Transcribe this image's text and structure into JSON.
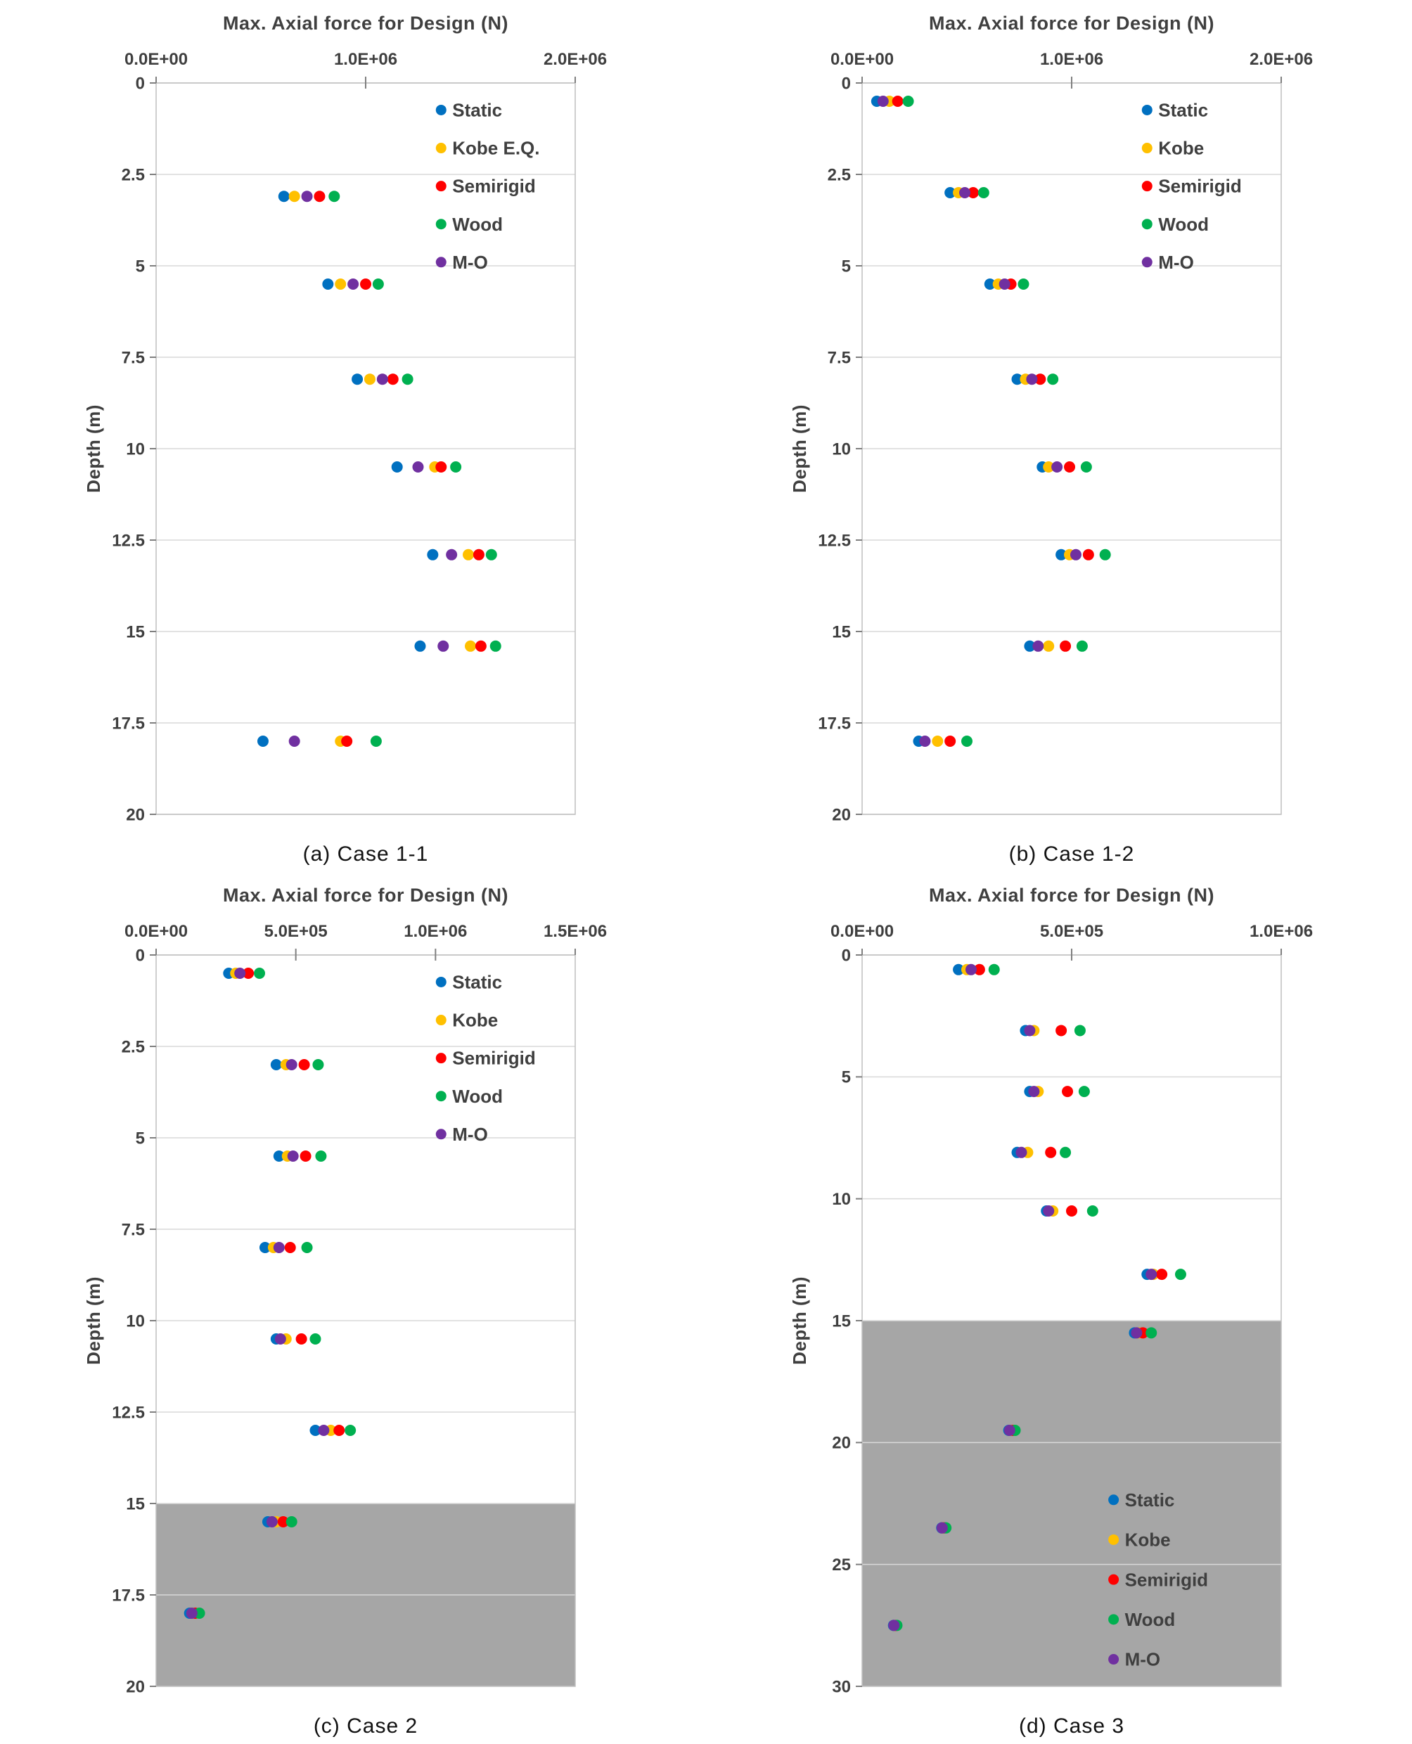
{
  "figure": {
    "background": "#FFFFFF",
    "grid_color": "#D9D9D9",
    "border_color": "#BFBFBF",
    "tick_color": "#7F7F7F",
    "text_color": "#3F3F3F",
    "shading_color": "#A6A6A6"
  },
  "chart_data": [
    {
      "type": "scatter",
      "title": "Max. Axial force for Design (N)",
      "caption": "(a)  Case 1-1",
      "xlabel": "",
      "ylabel": "Depth (m)",
      "xlim": [
        0,
        2000000
      ],
      "xticks": [
        0,
        1000000,
        2000000
      ],
      "xtick_labels": [
        "0.0E+00",
        "1.0E+06",
        "2.0E+06"
      ],
      "ylim": [
        0,
        20
      ],
      "yticks": [
        0,
        2.5,
        5,
        7.5,
        10,
        12.5,
        15,
        17.5,
        20
      ],
      "ytick_labels": [
        "0",
        "2.5",
        "5",
        "7.5",
        "10",
        "12.5",
        "15",
        "17.5",
        "20"
      ],
      "grid": "horizontal",
      "legend_position": {
        "x": 0.68,
        "y": 0.037,
        "dy": 0.052
      },
      "shaded_region": null,
      "series": [
        {
          "name": "Static",
          "color": "#0070C0",
          "points": [
            [
              610000,
              3.1
            ],
            [
              820000,
              5.5
            ],
            [
              960000,
              8.1
            ],
            [
              1150000,
              10.5
            ],
            [
              1320000,
              12.9
            ],
            [
              1260000,
              15.4
            ],
            [
              510000,
              18.0
            ]
          ]
        },
        {
          "name": "Kobe E.Q.",
          "color": "#FFC000",
          "points": [
            [
              660000,
              3.1
            ],
            [
              880000,
              5.5
            ],
            [
              1020000,
              8.1
            ],
            [
              1330000,
              10.5
            ],
            [
              1490000,
              12.9
            ],
            [
              1500000,
              15.4
            ],
            [
              880000,
              18.0
            ]
          ]
        },
        {
          "name": "Semirigid",
          "color": "#FF0000",
          "points": [
            [
              780000,
              3.1
            ],
            [
              1000000,
              5.5
            ],
            [
              1130000,
              8.1
            ],
            [
              1360000,
              10.5
            ],
            [
              1540000,
              12.9
            ],
            [
              1550000,
              15.4
            ],
            [
              910000,
              18.0
            ]
          ]
        },
        {
          "name": "Wood",
          "color": "#00B050",
          "points": [
            [
              850000,
              3.1
            ],
            [
              1060000,
              5.5
            ],
            [
              1200000,
              8.1
            ],
            [
              1430000,
              10.5
            ],
            [
              1600000,
              12.9
            ],
            [
              1620000,
              15.4
            ],
            [
              1050000,
              18.0
            ]
          ]
        },
        {
          "name": "M-O",
          "color": "#7030A0",
          "points": [
            [
              720000,
              3.1
            ],
            [
              940000,
              5.5
            ],
            [
              1080000,
              8.1
            ],
            [
              1250000,
              10.5
            ],
            [
              1410000,
              12.9
            ],
            [
              1370000,
              15.4
            ],
            [
              660000,
              18.0
            ]
          ]
        }
      ]
    },
    {
      "type": "scatter",
      "title": "Max. Axial force for Design (N)",
      "caption": "(b)  Case 1-2",
      "xlabel": "",
      "ylabel": "Depth (m)",
      "xlim": [
        0,
        2000000
      ],
      "xticks": [
        0,
        1000000,
        2000000
      ],
      "xtick_labels": [
        "0.0E+00",
        "1.0E+06",
        "2.0E+06"
      ],
      "ylim": [
        0,
        20
      ],
      "yticks": [
        0,
        2.5,
        5,
        7.5,
        10,
        12.5,
        15,
        17.5,
        20
      ],
      "ytick_labels": [
        "0",
        "2.5",
        "5",
        "7.5",
        "10",
        "12.5",
        "15",
        "17.5",
        "20"
      ],
      "grid": "horizontal",
      "legend_position": {
        "x": 0.68,
        "y": 0.037,
        "dy": 0.052
      },
      "shaded_region": null,
      "series": [
        {
          "name": "Static",
          "color": "#0070C0",
          "points": [
            [
              70000,
              0.5
            ],
            [
              420000,
              3.0
            ],
            [
              610000,
              5.5
            ],
            [
              740000,
              8.1
            ],
            [
              860000,
              10.5
            ],
            [
              950000,
              12.9
            ],
            [
              800000,
              15.4
            ],
            [
              270000,
              18.0
            ]
          ]
        },
        {
          "name": "Kobe",
          "color": "#FFC000",
          "points": [
            [
              130000,
              0.5
            ],
            [
              460000,
              3.0
            ],
            [
              650000,
              5.5
            ],
            [
              780000,
              8.1
            ],
            [
              890000,
              10.5
            ],
            [
              990000,
              12.9
            ],
            [
              890000,
              15.4
            ],
            [
              360000,
              18.0
            ]
          ]
        },
        {
          "name": "Semirigid",
          "color": "#FF0000",
          "points": [
            [
              170000,
              0.5
            ],
            [
              530000,
              3.0
            ],
            [
              710000,
              5.5
            ],
            [
              850000,
              8.1
            ],
            [
              990000,
              10.5
            ],
            [
              1080000,
              12.9
            ],
            [
              970000,
              15.4
            ],
            [
              420000,
              18.0
            ]
          ]
        },
        {
          "name": "Wood",
          "color": "#00B050",
          "points": [
            [
              220000,
              0.5
            ],
            [
              580000,
              3.0
            ],
            [
              770000,
              5.5
            ],
            [
              910000,
              8.1
            ],
            [
              1070000,
              10.5
            ],
            [
              1160000,
              12.9
            ],
            [
              1050000,
              15.4
            ],
            [
              500000,
              18.0
            ]
          ]
        },
        {
          "name": "M-O",
          "color": "#7030A0",
          "points": [
            [
              100000,
              0.5
            ],
            [
              490000,
              3.0
            ],
            [
              680000,
              5.5
            ],
            [
              810000,
              8.1
            ],
            [
              930000,
              10.5
            ],
            [
              1020000,
              12.9
            ],
            [
              840000,
              15.4
            ],
            [
              300000,
              18.0
            ]
          ]
        }
      ]
    },
    {
      "type": "scatter",
      "title": "Max. Axial force for Design (N)",
      "caption": "(c)  Case 2",
      "xlabel": "",
      "ylabel": "Depth (m)",
      "xlim": [
        0,
        1500000
      ],
      "xticks": [
        0,
        500000,
        1000000,
        1500000
      ],
      "xtick_labels": [
        "0.0E+00",
        "5.0E+05",
        "1.0E+06",
        "1.5E+06"
      ],
      "ylim": [
        0,
        20
      ],
      "yticks": [
        0,
        2.5,
        5,
        7.5,
        10,
        12.5,
        15,
        17.5,
        20
      ],
      "ytick_labels": [
        "0",
        "2.5",
        "5",
        "7.5",
        "10",
        "12.5",
        "15",
        "17.5",
        "20"
      ],
      "grid": "horizontal",
      "legend_position": {
        "x": 0.68,
        "y": 0.037,
        "dy": 0.052
      },
      "shaded_region": {
        "from_depth": 15,
        "to_depth": 20,
        "color": "#A6A6A6"
      },
      "series": [
        {
          "name": "Static",
          "color": "#0070C0",
          "points": [
            [
              260000,
              0.5
            ],
            [
              430000,
              3.0
            ],
            [
              440000,
              5.5
            ],
            [
              390000,
              8.0
            ],
            [
              430000,
              10.5
            ],
            [
              570000,
              13.0
            ],
            [
              400000,
              15.5
            ],
            [
              120000,
              18.0
            ]
          ]
        },
        {
          "name": "Kobe",
          "color": "#FFC000",
          "points": [
            [
              285000,
              0.5
            ],
            [
              465000,
              3.0
            ],
            [
              470000,
              5.5
            ],
            [
              420000,
              8.0
            ],
            [
              465000,
              10.5
            ],
            [
              625000,
              13.0
            ],
            [
              430000,
              15.5
            ],
            [
              130000,
              18.0
            ]
          ]
        },
        {
          "name": "Semirigid",
          "color": "#FF0000",
          "points": [
            [
              330000,
              0.5
            ],
            [
              530000,
              3.0
            ],
            [
              535000,
              5.5
            ],
            [
              480000,
              8.0
            ],
            [
              520000,
              10.5
            ],
            [
              655000,
              13.0
            ],
            [
              455000,
              15.5
            ],
            [
              140000,
              18.0
            ]
          ]
        },
        {
          "name": "Wood",
          "color": "#00B050",
          "points": [
            [
              370000,
              0.5
            ],
            [
              580000,
              3.0
            ],
            [
              590000,
              5.5
            ],
            [
              540000,
              8.0
            ],
            [
              570000,
              10.5
            ],
            [
              695000,
              13.0
            ],
            [
              485000,
              15.5
            ],
            [
              155000,
              18.0
            ]
          ]
        },
        {
          "name": "M-O",
          "color": "#7030A0",
          "points": [
            [
              300000,
              0.5
            ],
            [
              485000,
              3.0
            ],
            [
              490000,
              5.5
            ],
            [
              440000,
              8.0
            ],
            [
              445000,
              10.5
            ],
            [
              600000,
              13.0
            ],
            [
              415000,
              15.5
            ],
            [
              128000,
              18.0
            ]
          ]
        }
      ]
    },
    {
      "type": "scatter",
      "title": "Max. Axial force for Design (N)",
      "caption": "(d)  Case 3",
      "xlabel": "",
      "ylabel": "Depth (m)",
      "xlim": [
        0,
        1000000
      ],
      "xticks": [
        0,
        500000,
        1000000
      ],
      "xtick_labels": [
        "0.0E+00",
        "5.0E+05",
        "1.0E+06"
      ],
      "ylim": [
        0,
        30
      ],
      "yticks": [
        0,
        5,
        10,
        15,
        20,
        25,
        30
      ],
      "ytick_labels": [
        "0",
        "5",
        "10",
        "15",
        "20",
        "25",
        "30"
      ],
      "grid": "horizontal",
      "legend_position": {
        "x": 0.6,
        "y": 0.745,
        "dy": 0.0545
      },
      "shaded_region": {
        "from_depth": 15,
        "to_depth": 30,
        "color": "#A6A6A6"
      },
      "series": [
        {
          "name": "Static",
          "color": "#0070C0",
          "points": [
            [
              230000,
              0.6
            ],
            [
              390000,
              3.1
            ],
            [
              400000,
              5.6
            ],
            [
              370000,
              8.1
            ],
            [
              440000,
              10.5
            ],
            [
              680000,
              13.1
            ],
            [
              650000,
              15.5
            ],
            [
              350000,
              19.5
            ],
            [
              190000,
              23.5
            ],
            [
              75000,
              27.5
            ]
          ]
        },
        {
          "name": "Kobe",
          "color": "#FFC000",
          "points": [
            [
              250000,
              0.6
            ],
            [
              410000,
              3.1
            ],
            [
              420000,
              5.6
            ],
            [
              395000,
              8.1
            ],
            [
              455000,
              10.5
            ],
            [
              695000,
              13.1
            ],
            [
              660000,
              15.5
            ],
            [
              355000,
              19.5
            ],
            [
              193000,
              23.5
            ],
            [
              78000,
              27.5
            ]
          ]
        },
        {
          "name": "Semirigid",
          "color": "#FF0000",
          "points": [
            [
              280000,
              0.6
            ],
            [
              475000,
              3.1
            ],
            [
              490000,
              5.6
            ],
            [
              450000,
              8.1
            ],
            [
              500000,
              10.5
            ],
            [
              715000,
              13.1
            ],
            [
              670000,
              15.5
            ],
            [
              360000,
              19.5
            ],
            [
              196000,
              23.5
            ],
            [
              80000,
              27.5
            ]
          ]
        },
        {
          "name": "Wood",
          "color": "#00B050",
          "points": [
            [
              315000,
              0.6
            ],
            [
              520000,
              3.1
            ],
            [
              530000,
              5.6
            ],
            [
              485000,
              8.1
            ],
            [
              550000,
              10.5
            ],
            [
              760000,
              13.1
            ],
            [
              690000,
              15.5
            ],
            [
              365000,
              19.5
            ],
            [
              200000,
              23.5
            ],
            [
              83000,
              27.5
            ]
          ]
        },
        {
          "name": "M-O",
          "color": "#7030A0",
          "points": [
            [
              260000,
              0.6
            ],
            [
              400000,
              3.1
            ],
            [
              410000,
              5.6
            ],
            [
              380000,
              8.1
            ],
            [
              445000,
              10.5
            ],
            [
              690000,
              13.1
            ],
            [
              655000,
              15.5
            ],
            [
              352000,
              19.5
            ],
            [
              191000,
              23.5
            ],
            [
              76000,
              27.5
            ]
          ]
        }
      ]
    }
  ]
}
